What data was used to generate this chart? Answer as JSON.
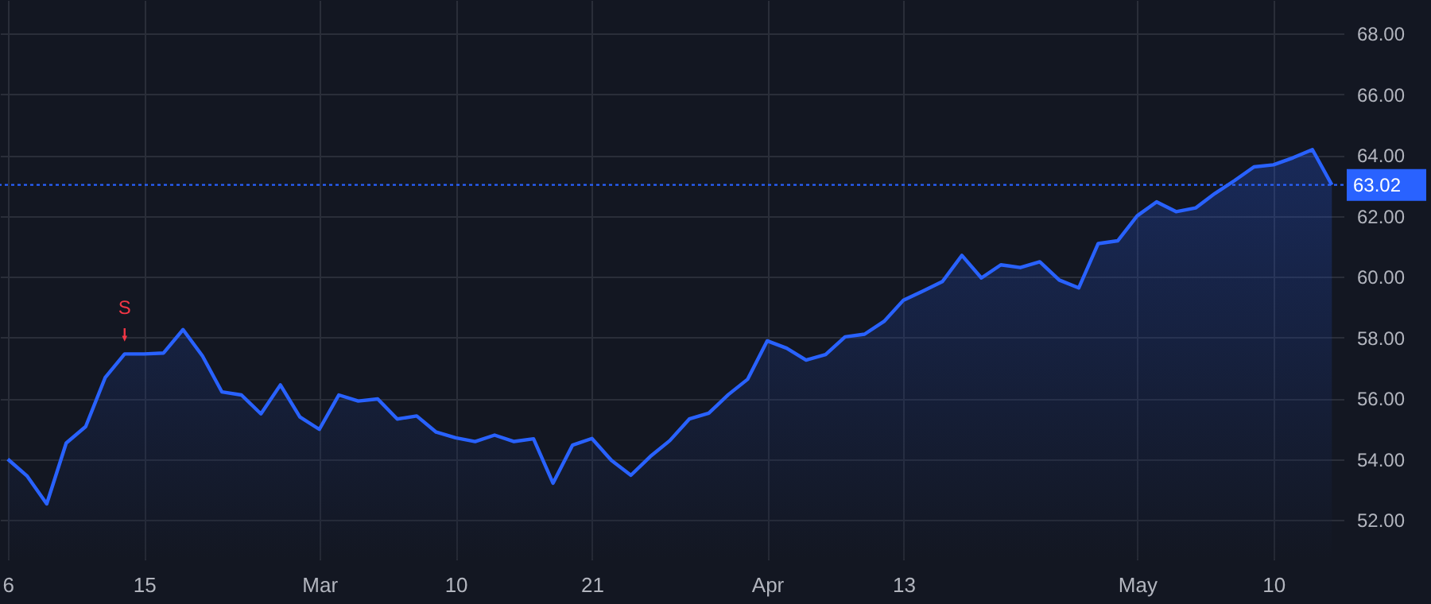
{
  "chart_data": {
    "type": "area",
    "categories": [
      "6",
      null,
      null,
      null,
      null,
      null,
      null,
      "15",
      null,
      null,
      null,
      null,
      null,
      null,
      null,
      null,
      "Mar",
      null,
      null,
      null,
      null,
      null,
      null,
      "10",
      null,
      null,
      null,
      null,
      null,
      null,
      "21",
      null,
      null,
      null,
      null,
      null,
      null,
      null,
      null,
      "Apr",
      null,
      null,
      null,
      null,
      null,
      null,
      "13",
      null,
      null,
      null,
      null,
      null,
      null,
      null,
      null,
      null,
      null,
      null,
      "May",
      null,
      null,
      null,
      null,
      null,
      null,
      "10",
      null,
      null,
      null
    ],
    "series": [
      {
        "color": "#2962ff",
        "values": [
          54.0,
          53.44,
          52.53,
          54.53,
          55.07,
          56.68,
          57.46,
          57.46,
          57.49,
          58.26,
          57.39,
          56.21,
          56.11,
          55.49,
          56.44,
          55.39,
          54.98,
          56.11,
          55.91,
          55.98,
          55.32,
          55.42,
          54.89,
          54.7,
          54.58,
          54.79,
          54.58,
          54.67,
          53.21,
          54.46,
          54.68,
          53.96,
          53.47,
          54.09,
          54.61,
          55.32,
          55.51,
          56.12,
          56.63,
          57.89,
          57.65,
          57.26,
          57.44,
          58.02,
          58.11,
          58.53,
          59.23,
          59.53,
          59.84,
          60.7,
          59.96,
          60.39,
          60.3,
          60.49,
          59.89,
          59.63,
          61.09,
          61.18,
          62.0,
          62.46,
          62.14,
          62.26,
          62.74,
          63.16,
          63.61,
          63.68,
          63.91,
          64.18,
          63.02
        ]
      }
    ],
    "ylim": [
      50.7,
      69.1
    ],
    "yticks": [
      {
        "value": 52,
        "label": "52.00"
      },
      {
        "value": 54,
        "label": "54.00"
      },
      {
        "value": 56,
        "label": "56.00"
      },
      {
        "value": 58,
        "label": "58.00"
      },
      {
        "value": 60,
        "label": "60.00"
      },
      {
        "value": 62,
        "label": "62.00"
      },
      {
        "value": 64,
        "label": "64.00"
      },
      {
        "value": 66,
        "label": "66.00"
      },
      {
        "value": 68,
        "label": "68.00"
      }
    ],
    "ref_lines": [
      {
        "axis": "y",
        "value": 63.02,
        "label": "63.02",
        "color": "#2962ff",
        "line_style": "dotted"
      }
    ],
    "annotations": [
      {
        "text": "S",
        "y": 57.46
      }
    ],
    "grid": true
  }
}
